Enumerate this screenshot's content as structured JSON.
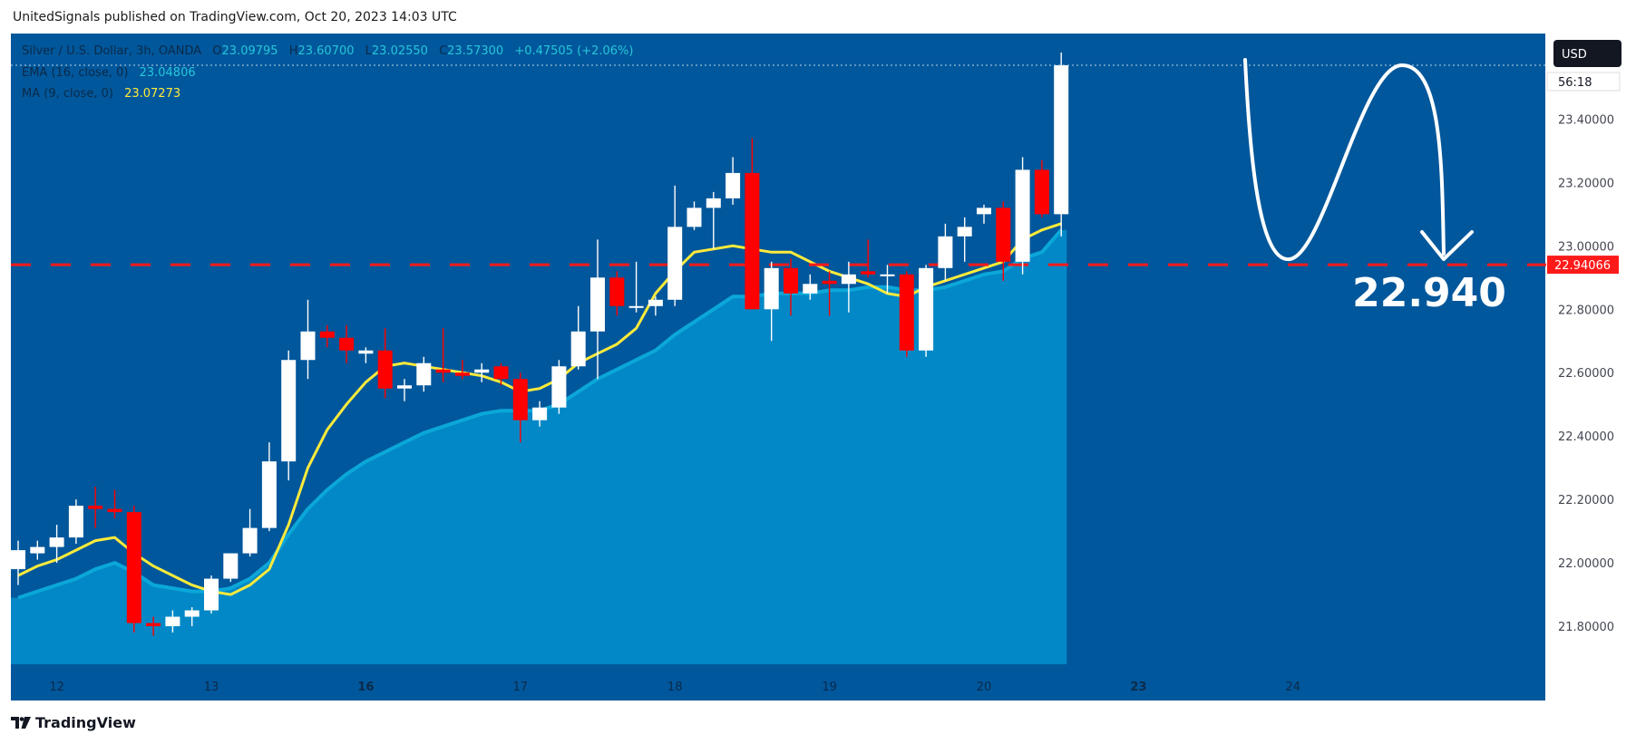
{
  "header": {
    "published_by": "UnitedSignals published on TradingView.com, Oct 20, 2023 14:03 UTC"
  },
  "legend": {
    "symbol": "Silver / U.S. Dollar, 3h, OANDA",
    "o_label": "O",
    "o_value": "23.09795",
    "h_label": "H",
    "h_value": "23.60700",
    "l_label": "L",
    "l_value": "23.02550",
    "c_label": "C",
    "c_value": "23.57300",
    "change": "+0.47505 (+2.06%)",
    "ema_label": "EMA (16, close, 0)",
    "ema_value": "23.04806",
    "ma_label": "MA (9, close, 0)",
    "ma_value": "23.07273"
  },
  "price_axis": {
    "currency": "USD",
    "countdown": "56:18",
    "ticks": [
      "23.40000",
      "23.20000",
      "23.00000",
      "22.80000",
      "22.60000",
      "22.40000",
      "22.20000",
      "22.00000",
      "21.80000"
    ],
    "level_label": "22.94066"
  },
  "annotation": {
    "target_text": "22.940"
  },
  "footer": {
    "brand": "TradingView"
  },
  "colors": {
    "background": "#01579b",
    "area": "#0288c6",
    "ema": "#0ba7d9",
    "ma": "#ffeb3b",
    "up_candle": "#ffffff",
    "down_candle": "#ff0000",
    "level_line": "#ff1a1a",
    "axis_bg": "#ffffff"
  },
  "chart_data": {
    "type": "candlestick",
    "title": "Silver / U.S. Dollar, 3h, OANDA",
    "ylim": [
      21.68,
      23.67
    ],
    "x_ticks": [
      {
        "label": "12",
        "bar": 2,
        "bold": false
      },
      {
        "label": "13",
        "bar": 10,
        "bold": false
      },
      {
        "label": "16",
        "bar": 18,
        "bold": true
      },
      {
        "label": "17",
        "bar": 26,
        "bold": false
      },
      {
        "label": "18",
        "bar": 34,
        "bold": false
      },
      {
        "label": "19",
        "bar": 42,
        "bold": false
      },
      {
        "label": "20",
        "bar": 50,
        "bold": false
      },
      {
        "label": "23",
        "bar": 58,
        "bold": true
      },
      {
        "label": "24",
        "bar": 66,
        "bold": false
      }
    ],
    "horizontal_level": 22.94066,
    "candles": [
      {
        "o": 21.98,
        "h": 22.07,
        "l": 21.93,
        "c": 22.04
      },
      {
        "o": 22.03,
        "h": 22.07,
        "l": 22.01,
        "c": 22.05
      },
      {
        "o": 22.05,
        "h": 22.12,
        "l": 22.0,
        "c": 22.08
      },
      {
        "o": 22.08,
        "h": 22.2,
        "l": 22.06,
        "c": 22.18
      },
      {
        "o": 22.18,
        "h": 22.24,
        "l": 22.11,
        "c": 22.17
      },
      {
        "o": 22.17,
        "h": 22.23,
        "l": 22.14,
        "c": 22.16
      },
      {
        "o": 22.16,
        "h": 22.18,
        "l": 21.78,
        "c": 21.81
      },
      {
        "o": 21.81,
        "h": 21.83,
        "l": 21.77,
        "c": 21.8
      },
      {
        "o": 21.8,
        "h": 21.85,
        "l": 21.78,
        "c": 21.83
      },
      {
        "o": 21.83,
        "h": 21.86,
        "l": 21.8,
        "c": 21.85
      },
      {
        "o": 21.85,
        "h": 21.96,
        "l": 21.84,
        "c": 21.95
      },
      {
        "o": 21.95,
        "h": 22.03,
        "l": 21.94,
        "c": 22.03
      },
      {
        "o": 22.03,
        "h": 22.17,
        "l": 22.02,
        "c": 22.11
      },
      {
        "o": 22.11,
        "h": 22.38,
        "l": 22.1,
        "c": 22.32
      },
      {
        "o": 22.32,
        "h": 22.67,
        "l": 22.26,
        "c": 22.64
      },
      {
        "o": 22.64,
        "h": 22.83,
        "l": 22.58,
        "c": 22.73
      },
      {
        "o": 22.73,
        "h": 22.75,
        "l": 22.68,
        "c": 22.71
      },
      {
        "o": 22.71,
        "h": 22.75,
        "l": 22.63,
        "c": 22.67
      },
      {
        "o": 22.66,
        "h": 22.68,
        "l": 22.63,
        "c": 22.67
      },
      {
        "o": 22.67,
        "h": 22.74,
        "l": 22.52,
        "c": 22.55
      },
      {
        "o": 22.55,
        "h": 22.58,
        "l": 22.51,
        "c": 22.56
      },
      {
        "o": 22.56,
        "h": 22.65,
        "l": 22.54,
        "c": 22.63
      },
      {
        "o": 22.61,
        "h": 22.74,
        "l": 22.57,
        "c": 22.6
      },
      {
        "o": 22.6,
        "h": 22.64,
        "l": 22.58,
        "c": 22.59
      },
      {
        "o": 22.6,
        "h": 22.63,
        "l": 22.57,
        "c": 22.61
      },
      {
        "o": 22.62,
        "h": 22.63,
        "l": 22.56,
        "c": 22.58
      },
      {
        "o": 22.58,
        "h": 22.6,
        "l": 22.38,
        "c": 22.45
      },
      {
        "o": 22.45,
        "h": 22.51,
        "l": 22.43,
        "c": 22.49
      },
      {
        "o": 22.49,
        "h": 22.64,
        "l": 22.47,
        "c": 22.62
      },
      {
        "o": 22.62,
        "h": 22.81,
        "l": 22.61,
        "c": 22.73
      },
      {
        "o": 22.73,
        "h": 23.02,
        "l": 22.58,
        "c": 22.9
      },
      {
        "o": 22.9,
        "h": 22.92,
        "l": 22.78,
        "c": 22.81
      },
      {
        "o": 22.81,
        "h": 22.95,
        "l": 22.79,
        "c": 22.81
      },
      {
        "o": 22.81,
        "h": 22.84,
        "l": 22.78,
        "c": 22.83
      },
      {
        "o": 22.83,
        "h": 23.19,
        "l": 22.81,
        "c": 23.06
      },
      {
        "o": 23.06,
        "h": 23.14,
        "l": 23.05,
        "c": 23.12
      },
      {
        "o": 23.12,
        "h": 23.17,
        "l": 22.99,
        "c": 23.15
      },
      {
        "o": 23.15,
        "h": 23.28,
        "l": 23.13,
        "c": 23.23
      },
      {
        "o": 23.23,
        "h": 23.34,
        "l": 22.8,
        "c": 22.8
      },
      {
        "o": 22.8,
        "h": 22.95,
        "l": 22.7,
        "c": 22.93
      },
      {
        "o": 22.93,
        "h": 22.96,
        "l": 22.78,
        "c": 22.85
      },
      {
        "o": 22.85,
        "h": 22.91,
        "l": 22.83,
        "c": 22.88
      },
      {
        "o": 22.89,
        "h": 22.92,
        "l": 22.78,
        "c": 22.88
      },
      {
        "o": 22.88,
        "h": 22.95,
        "l": 22.79,
        "c": 22.91
      },
      {
        "o": 22.92,
        "h": 23.02,
        "l": 22.9,
        "c": 22.91
      },
      {
        "o": 22.91,
        "h": 22.94,
        "l": 22.85,
        "c": 22.91
      },
      {
        "o": 22.91,
        "h": 22.92,
        "l": 22.65,
        "c": 22.67
      },
      {
        "o": 22.67,
        "h": 22.94,
        "l": 22.65,
        "c": 22.93
      },
      {
        "o": 22.93,
        "h": 23.07,
        "l": 22.89,
        "c": 23.03
      },
      {
        "o": 23.03,
        "h": 23.09,
        "l": 22.95,
        "c": 23.06
      },
      {
        "o": 23.1,
        "h": 23.13,
        "l": 23.07,
        "c": 23.12
      },
      {
        "o": 23.12,
        "h": 23.14,
        "l": 22.89,
        "c": 22.95
      },
      {
        "o": 22.95,
        "h": 23.28,
        "l": 22.91,
        "c": 23.24
      },
      {
        "o": 23.24,
        "h": 23.27,
        "l": 23.09,
        "c": 23.1
      },
      {
        "o": 23.1,
        "h": 23.61,
        "l": 23.03,
        "c": 23.57
      }
    ],
    "ema": [
      21.89,
      21.91,
      21.93,
      21.95,
      21.98,
      22.0,
      21.97,
      21.93,
      21.92,
      21.91,
      21.91,
      21.92,
      21.95,
      22.0,
      22.09,
      22.17,
      22.23,
      22.28,
      22.32,
      22.35,
      22.38,
      22.41,
      22.43,
      22.45,
      22.47,
      22.48,
      22.48,
      22.48,
      22.5,
      22.54,
      22.58,
      22.61,
      22.64,
      22.67,
      22.72,
      22.76,
      22.8,
      22.84,
      22.84,
      22.85,
      22.85,
      22.85,
      22.86,
      22.86,
      22.87,
      22.87,
      22.86,
      22.86,
      22.87,
      22.89,
      22.91,
      22.92,
      22.96,
      22.98,
      23.05
    ],
    "ma": [
      21.96,
      21.99,
      22.01,
      22.04,
      22.07,
      22.08,
      22.03,
      21.99,
      21.96,
      21.93,
      21.91,
      21.9,
      21.93,
      21.98,
      22.12,
      22.3,
      22.42,
      22.5,
      22.57,
      22.62,
      22.63,
      22.62,
      22.61,
      22.6,
      22.59,
      22.57,
      22.54,
      22.55,
      22.58,
      22.63,
      22.66,
      22.69,
      22.74,
      22.85,
      22.92,
      22.98,
      22.99,
      23.0,
      22.99,
      22.98,
      22.98,
      22.95,
      22.92,
      22.9,
      22.88,
      22.85,
      22.84,
      22.87,
      22.89,
      22.91,
      22.93,
      22.95,
      23.02,
      23.05,
      23.07
    ]
  }
}
